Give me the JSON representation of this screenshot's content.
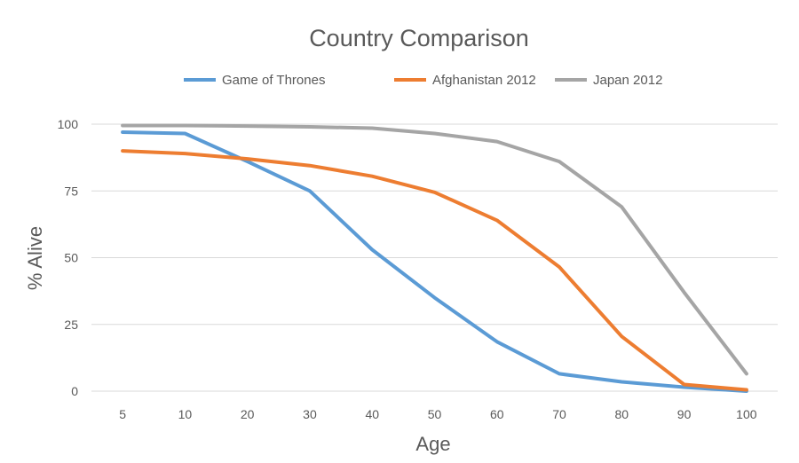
{
  "chart_data": {
    "type": "line",
    "title": "Country Comparison",
    "xlabel": "Age",
    "ylabel": "% Alive",
    "categories": [
      "5",
      "10",
      "20",
      "30",
      "40",
      "50",
      "60",
      "70",
      "80",
      "90",
      "100"
    ],
    "yticks": [
      "0",
      "25",
      "50",
      "75",
      "100"
    ],
    "ylim": [
      0,
      100
    ],
    "grid": true,
    "legend_position": "top",
    "series": [
      {
        "name": "Game of Thrones",
        "color": "#5b9bd5",
        "values": [
          97,
          96.5,
          86,
          75,
          53,
          35,
          18.5,
          6.5,
          3.5,
          1.5,
          0
        ]
      },
      {
        "name": "Afghanistan 2012",
        "color": "#ed7d31",
        "values": [
          90,
          89,
          87,
          84.5,
          80.5,
          74.5,
          64,
          46.5,
          20.5,
          2.5,
          0.5
        ]
      },
      {
        "name": "Japan 2012",
        "color": "#a5a5a5",
        "values": [
          99.5,
          99.5,
          99.3,
          99,
          98.5,
          96.5,
          93.5,
          86,
          69,
          37,
          6.5
        ]
      }
    ]
  }
}
